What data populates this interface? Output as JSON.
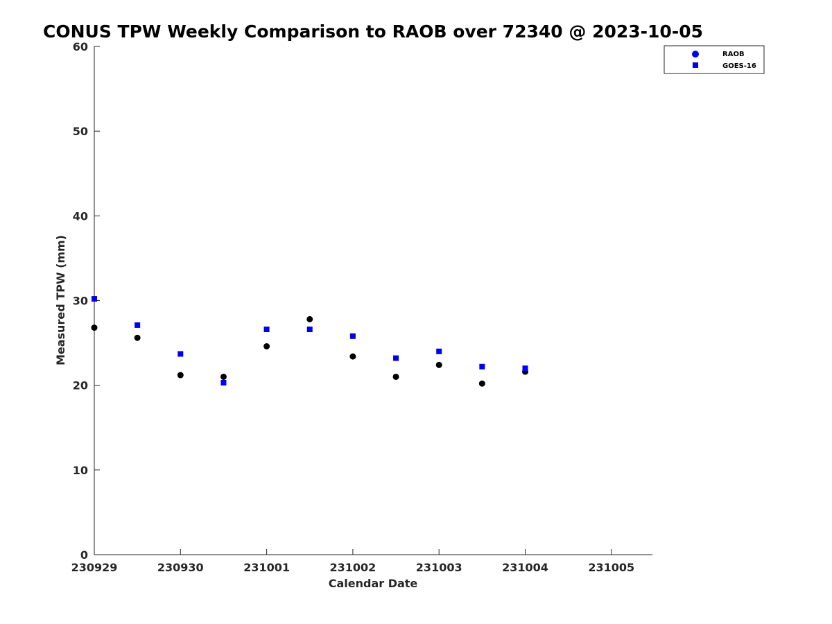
{
  "chart_data": {
    "type": "scatter",
    "title": "CONUS TPW Weekly Comparison to RAOB over 72340 @ 2023-10-05",
    "xlabel": "Calendar Date",
    "ylabel": "Measured TPW (mm)",
    "x_ticks": [
      "230929",
      "230930",
      "231001",
      "231002",
      "231003",
      "231004",
      "231005"
    ],
    "x_range_days": [
      0,
      6.5
    ],
    "ylim": [
      0,
      60
    ],
    "y_ticks": [
      0,
      10,
      20,
      30,
      40,
      50,
      60
    ],
    "grid": false,
    "legend_position": "top-right",
    "series": [
      {
        "name": "RAOB",
        "marker": "circle",
        "color": "#000000",
        "legend_color": "#0000ee",
        "x": [
          "2023-09-29 00Z",
          "2023-09-29 12Z",
          "2023-09-30 00Z",
          "2023-09-30 12Z",
          "2023-10-01 00Z",
          "2023-10-01 12Z",
          "2023-10-02 00Z",
          "2023-10-02 12Z",
          "2023-10-03 00Z",
          "2023-10-03 12Z",
          "2023-10-04 00Z"
        ],
        "values": [
          26.8,
          25.6,
          21.2,
          21.0,
          24.6,
          27.8,
          23.4,
          21.0,
          22.4,
          20.2,
          21.6
        ]
      },
      {
        "name": "GOES-16",
        "marker": "square",
        "color": "#0000ee",
        "legend_color": "#0000ee",
        "x": [
          "2023-09-29 00Z",
          "2023-09-29 12Z",
          "2023-09-30 00Z",
          "2023-09-30 12Z",
          "2023-10-01 00Z",
          "2023-10-01 12Z",
          "2023-10-02 00Z",
          "2023-10-02 12Z",
          "2023-10-03 00Z",
          "2023-10-03 12Z",
          "2023-10-04 00Z"
        ],
        "values": [
          30.2,
          27.1,
          23.7,
          20.3,
          26.6,
          26.6,
          25.8,
          23.2,
          24.0,
          22.2,
          22.0
        ]
      }
    ]
  }
}
